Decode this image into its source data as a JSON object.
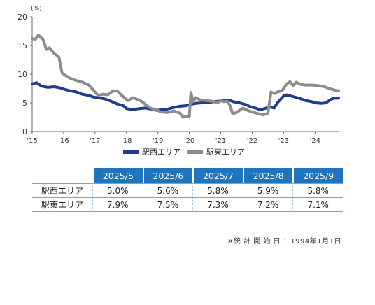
{
  "chart_data": {
    "type": "line",
    "ylabel": "(%)",
    "ylim": [
      0,
      20
    ],
    "yticks": [
      0,
      5,
      10,
      15,
      20
    ],
    "xlim": [
      2015.0,
      2024.75
    ],
    "xticks": [
      {
        "value": 2015,
        "label": "'15"
      },
      {
        "value": 2016,
        "label": "'16"
      },
      {
        "value": 2017,
        "label": "'17"
      },
      {
        "value": 2018,
        "label": "'18"
      },
      {
        "value": 2019,
        "label": "'19"
      },
      {
        "value": 2020,
        "label": "'20"
      },
      {
        "value": 2021,
        "label": "'21"
      },
      {
        "value": 2022,
        "label": "'22"
      },
      {
        "value": 2023,
        "label": "'23"
      },
      {
        "value": 2024,
        "label": "'24"
      }
    ],
    "series": [
      {
        "name": "駅西エリア",
        "color": "#1f3c8f",
        "points": [
          [
            2015.0,
            8.3
          ],
          [
            2015.15,
            8.5
          ],
          [
            2015.3,
            7.9
          ],
          [
            2015.5,
            7.7
          ],
          [
            2015.7,
            7.8
          ],
          [
            2015.9,
            7.6
          ],
          [
            2016.0,
            7.4
          ],
          [
            2016.2,
            7.1
          ],
          [
            2016.4,
            6.9
          ],
          [
            2016.6,
            6.5
          ],
          [
            2016.8,
            6.3
          ],
          [
            2016.95,
            6.0
          ],
          [
            2017.1,
            5.9
          ],
          [
            2017.3,
            5.7
          ],
          [
            2017.5,
            5.3
          ],
          [
            2017.7,
            4.8
          ],
          [
            2017.9,
            4.5
          ],
          [
            2018.0,
            4.0
          ],
          [
            2018.2,
            3.8
          ],
          [
            2018.4,
            4.0
          ],
          [
            2018.6,
            4.1
          ],
          [
            2018.8,
            3.9
          ],
          [
            2018.95,
            3.7
          ],
          [
            2019.1,
            3.8
          ],
          [
            2019.3,
            3.9
          ],
          [
            2019.5,
            4.2
          ],
          [
            2019.7,
            4.4
          ],
          [
            2019.9,
            4.5
          ],
          [
            2020.0,
            4.7
          ],
          [
            2020.2,
            4.9
          ],
          [
            2020.4,
            5.0
          ],
          [
            2020.6,
            5.1
          ],
          [
            2020.8,
            5.2
          ],
          [
            2020.95,
            5.3
          ],
          [
            2021.1,
            5.4
          ],
          [
            2021.25,
            5.5
          ],
          [
            2021.4,
            5.2
          ],
          [
            2021.6,
            5.0
          ],
          [
            2021.8,
            4.7
          ],
          [
            2021.95,
            4.3
          ],
          [
            2022.1,
            4.1
          ],
          [
            2022.25,
            3.8
          ],
          [
            2022.4,
            4.0
          ],
          [
            2022.55,
            4.3
          ],
          [
            2022.7,
            4.1
          ],
          [
            2022.8,
            5.0
          ],
          [
            2022.9,
            5.6
          ],
          [
            2023.0,
            6.2
          ],
          [
            2023.1,
            6.4
          ],
          [
            2023.3,
            6.1
          ],
          [
            2023.5,
            5.8
          ],
          [
            2023.7,
            5.4
          ],
          [
            2023.9,
            5.2
          ],
          [
            2024.0,
            5.0
          ],
          [
            2024.2,
            4.9
          ],
          [
            2024.35,
            5.0
          ],
          [
            2024.5,
            5.6
          ],
          [
            2024.6,
            5.8
          ],
          [
            2024.75,
            5.8
          ]
        ]
      },
      {
        "name": "駅東エリア",
        "color": "#8c8c8c",
        "points": [
          [
            2015.0,
            16.2
          ],
          [
            2015.1,
            16.1
          ],
          [
            2015.2,
            16.8
          ],
          [
            2015.35,
            16.0
          ],
          [
            2015.45,
            14.3
          ],
          [
            2015.55,
            14.6
          ],
          [
            2015.7,
            13.6
          ],
          [
            2015.85,
            13.0
          ],
          [
            2015.95,
            10.2
          ],
          [
            2016.05,
            9.8
          ],
          [
            2016.2,
            9.3
          ],
          [
            2016.4,
            8.9
          ],
          [
            2016.6,
            8.6
          ],
          [
            2016.8,
            8.1
          ],
          [
            2016.9,
            7.5
          ],
          [
            2017.0,
            6.9
          ],
          [
            2017.1,
            6.3
          ],
          [
            2017.25,
            6.5
          ],
          [
            2017.4,
            6.4
          ],
          [
            2017.55,
            7.0
          ],
          [
            2017.7,
            7.1
          ],
          [
            2017.85,
            6.3
          ],
          [
            2017.95,
            5.8
          ],
          [
            2018.05,
            5.4
          ],
          [
            2018.2,
            5.9
          ],
          [
            2018.35,
            5.6
          ],
          [
            2018.5,
            5.2
          ],
          [
            2018.65,
            4.5
          ],
          [
            2018.8,
            4.0
          ],
          [
            2018.95,
            3.8
          ],
          [
            2019.1,
            3.4
          ],
          [
            2019.3,
            3.3
          ],
          [
            2019.5,
            3.6
          ],
          [
            2019.7,
            3.2
          ],
          [
            2019.8,
            2.5
          ],
          [
            2019.9,
            2.6
          ],
          [
            2020.0,
            2.7
          ],
          [
            2020.05,
            6.8
          ],
          [
            2020.12,
            5.2
          ],
          [
            2020.2,
            5.9
          ],
          [
            2020.35,
            5.5
          ],
          [
            2020.5,
            5.4
          ],
          [
            2020.7,
            5.3
          ],
          [
            2020.9,
            5.0
          ],
          [
            2021.0,
            5.4
          ],
          [
            2021.1,
            5.2
          ],
          [
            2021.2,
            5.3
          ],
          [
            2021.3,
            4.5
          ],
          [
            2021.38,
            3.1
          ],
          [
            2021.5,
            3.3
          ],
          [
            2021.7,
            4.1
          ],
          [
            2021.85,
            3.7
          ],
          [
            2022.0,
            3.4
          ],
          [
            2022.2,
            3.1
          ],
          [
            2022.35,
            2.9
          ],
          [
            2022.5,
            3.2
          ],
          [
            2022.6,
            6.9
          ],
          [
            2022.7,
            6.6
          ],
          [
            2022.8,
            6.9
          ],
          [
            2022.95,
            7.1
          ],
          [
            2023.1,
            8.3
          ],
          [
            2023.2,
            8.7
          ],
          [
            2023.3,
            8.0
          ],
          [
            2023.4,
            8.6
          ],
          [
            2023.55,
            8.2
          ],
          [
            2023.7,
            8.1
          ],
          [
            2023.9,
            8.1
          ],
          [
            2024.1,
            8.0
          ],
          [
            2024.3,
            7.8
          ],
          [
            2024.5,
            7.4
          ],
          [
            2024.65,
            7.2
          ],
          [
            2024.75,
            7.1
          ]
        ]
      }
    ]
  },
  "legend": [
    {
      "label": "駅西エリア",
      "color": "#1f3c8f"
    },
    {
      "label": "駅東エリア",
      "color": "#8c8c8c"
    }
  ],
  "table": {
    "columns": [
      "2025/5",
      "2025/6",
      "2025/7",
      "2025/8",
      "2025/9"
    ],
    "rows": [
      {
        "label": "駅西エリア",
        "values": [
          "5.0%",
          "5.6%",
          "5.8%",
          "5.9%",
          "5.8%"
        ]
      },
      {
        "label": "駅東エリア",
        "values": [
          "7.9%",
          "7.5%",
          "7.3%",
          "7.2%",
          "7.1%"
        ]
      }
    ],
    "header_color": "#1e74bd"
  },
  "note": "※統 計 開 始 日 ：1994年1月1日"
}
